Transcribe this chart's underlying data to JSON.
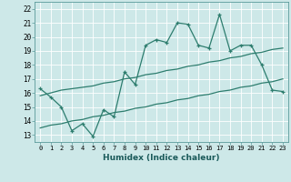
{
  "title": "",
  "xlabel": "Humidex (Indice chaleur)",
  "bg_color": "#cde8e8",
  "grid_color": "#b0d0d0",
  "line_color": "#2d7d6e",
  "xlim": [
    -0.5,
    23.5
  ],
  "ylim": [
    12.5,
    22.5
  ],
  "xticks": [
    0,
    1,
    2,
    3,
    4,
    5,
    6,
    7,
    8,
    9,
    10,
    11,
    12,
    13,
    14,
    15,
    16,
    17,
    18,
    19,
    20,
    21,
    22,
    23
  ],
  "yticks": [
    13,
    14,
    15,
    16,
    17,
    18,
    19,
    20,
    21,
    22
  ],
  "main_line": [
    16.3,
    15.7,
    15.0,
    13.3,
    13.8,
    12.9,
    14.8,
    14.3,
    17.5,
    16.6,
    19.4,
    19.8,
    19.6,
    21.0,
    20.9,
    19.4,
    19.2,
    21.6,
    19.0,
    19.4,
    19.4,
    18.0,
    16.2,
    16.1
  ],
  "upper_line": [
    15.8,
    16.0,
    16.2,
    16.3,
    16.4,
    16.5,
    16.7,
    16.8,
    17.0,
    17.1,
    17.3,
    17.4,
    17.6,
    17.7,
    17.9,
    18.0,
    18.2,
    18.3,
    18.5,
    18.6,
    18.8,
    18.9,
    19.1,
    19.2
  ],
  "lower_line": [
    13.5,
    13.7,
    13.8,
    14.0,
    14.1,
    14.3,
    14.4,
    14.6,
    14.7,
    14.9,
    15.0,
    15.2,
    15.3,
    15.5,
    15.6,
    15.8,
    15.9,
    16.1,
    16.2,
    16.4,
    16.5,
    16.7,
    16.8,
    17.0
  ]
}
